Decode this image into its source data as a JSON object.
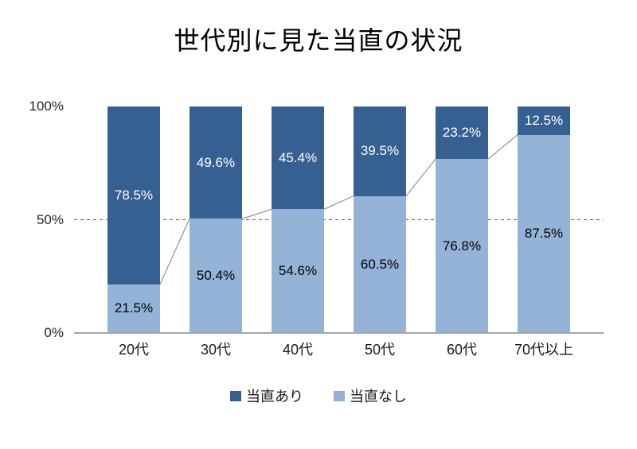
{
  "title": "世代別に見た当直の状況",
  "colors": {
    "series_dark": "#376092",
    "series_light": "#95b3d7",
    "connector_line": "#808080",
    "axis_line": "#a6a6a6",
    "gridline": "#595959",
    "label_on_dark": "#ffffff",
    "label_on_light": "#000000"
  },
  "y_axis": {
    "tick_100": "100%",
    "tick_50": "50%",
    "tick_0": "0%"
  },
  "legend": {
    "items": [
      {
        "label": "当直あり",
        "color": "#376092"
      },
      {
        "label": "当直なし",
        "color": "#95b3d7"
      }
    ]
  },
  "chart_data": {
    "type": "bar",
    "stacked": true,
    "title": "世代別に見た当直の状況",
    "categories": [
      "20代",
      "30代",
      "40代",
      "50代",
      "60代",
      "70代以上"
    ],
    "series": [
      {
        "name": "当直あり",
        "color": "#376092",
        "values": [
          78.5,
          49.6,
          45.4,
          39.5,
          23.2,
          12.5
        ]
      },
      {
        "name": "当直なし",
        "color": "#95b3d7",
        "values": [
          21.5,
          50.4,
          54.6,
          60.5,
          76.8,
          87.5
        ]
      }
    ],
    "labels": [
      [
        "78.5%",
        "49.6%",
        "45.4%",
        "39.5%",
        "23.2%",
        "12.5%"
      ],
      [
        "21.5%",
        "50.4%",
        "54.6%",
        "60.5%",
        "76.8%",
        "87.5%"
      ]
    ],
    "value_suffix": "%",
    "ylim": [
      0,
      100
    ],
    "y_ticks": [
      "0%",
      "50%",
      "100%"
    ],
    "gridline_at": 50,
    "grid": "dashed-50-only",
    "legend_position": "bottom",
    "connector_lines": true
  }
}
